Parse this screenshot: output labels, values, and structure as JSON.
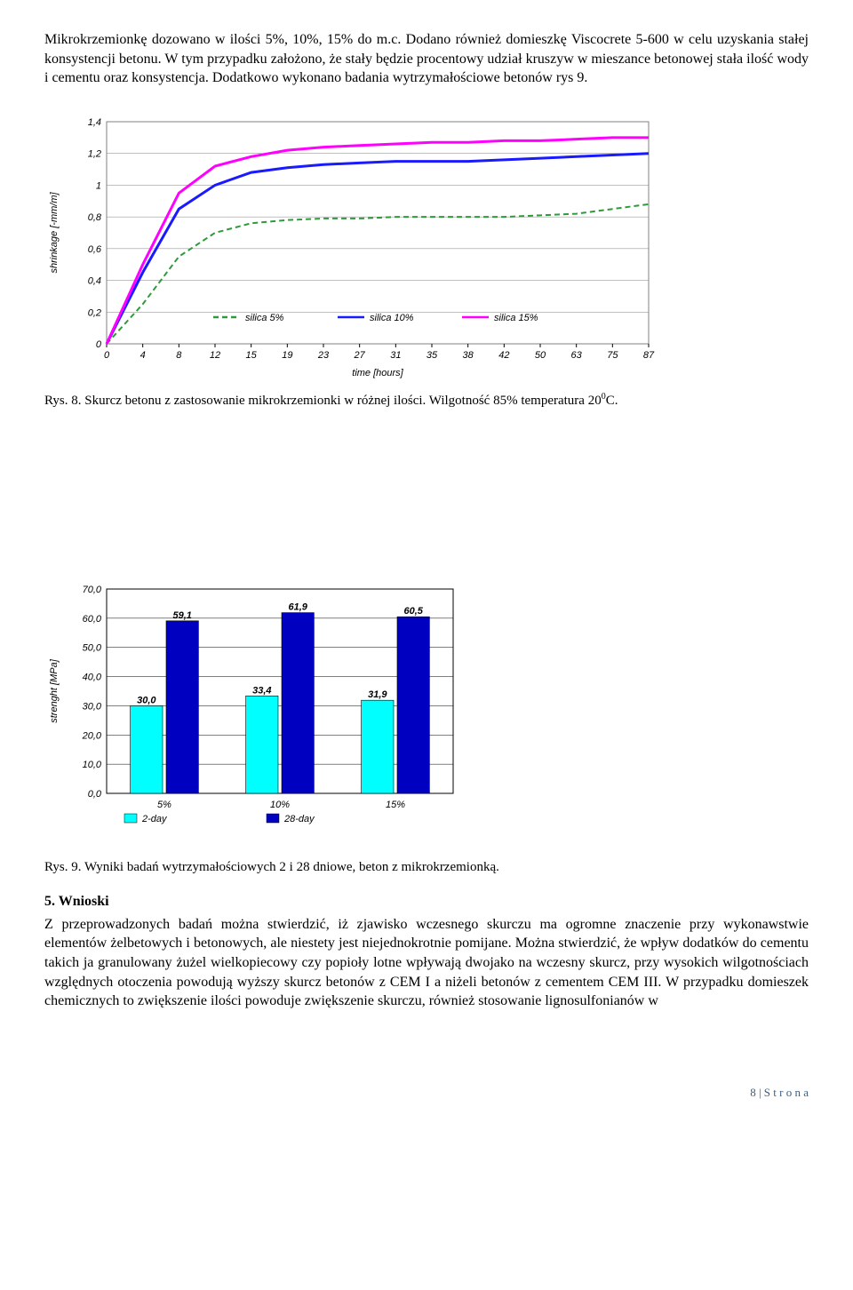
{
  "para1": "Mikrokrzemionkę dozowano w ilości 5%, 10%, 15% do m.c. Dodano również domieszkę Viscocrete 5-600 w celu uzyskania stałej konsystencji betonu. W tym przypadku założono, że stały będzie procentowy udział kruszyw w mieszance betonowej stała ilość wody i cementu oraz konsystencja. Dodatkowo wykonano badania wytrzymałościowe betonów rys 9.",
  "line_chart": {
    "type": "line",
    "x_ticks": [
      "0",
      "4",
      "8",
      "12",
      "15",
      "19",
      "23",
      "27",
      "31",
      "35",
      "38",
      "42",
      "50",
      "63",
      "75",
      "87"
    ],
    "y_ticks": [
      "0",
      "0,2",
      "0,4",
      "0,6",
      "0,8",
      "1",
      "1,2",
      "1,4"
    ],
    "ylim": [
      0,
      1.4
    ],
    "xlabel": "time [hours]",
    "ylabel": "shrinkage [-mm/m]",
    "series": [
      {
        "name": "silica 5%",
        "color": "#2e9a3a",
        "dash": "6,4",
        "y": [
          0,
          0.25,
          0.55,
          0.7,
          0.76,
          0.78,
          0.79,
          0.79,
          0.8,
          0.8,
          0.8,
          0.8,
          0.81,
          0.82,
          0.85,
          0.88
        ]
      },
      {
        "name": "silica 10%",
        "color": "#1a1aff",
        "dash": "none",
        "y": [
          0,
          0.45,
          0.85,
          1.0,
          1.08,
          1.11,
          1.13,
          1.14,
          1.15,
          1.15,
          1.15,
          1.16,
          1.17,
          1.18,
          1.19,
          1.2
        ]
      },
      {
        "name": "silica 15%",
        "color": "#ff00ff",
        "dash": "none",
        "y": [
          0,
          0.5,
          0.95,
          1.12,
          1.18,
          1.22,
          1.24,
          1.25,
          1.26,
          1.27,
          1.27,
          1.28,
          1.28,
          1.29,
          1.3,
          1.3
        ]
      }
    ],
    "plot_bg": "#ffffff",
    "grid_color": "#808080",
    "axis_color": "#000000",
    "font_size": 11,
    "line_width_5": 2,
    "line_width_10_15": 3
  },
  "caption1_prefix": "Rys. 8. Skurcz betonu z zastosowanie mikrokrzemionki w różnej ilości. Wilgotność 85% temperatura 20",
  "caption1_suffix": "C.",
  "bar_chart": {
    "type": "bar",
    "categories": [
      "5%",
      "10%",
      "15%"
    ],
    "series": [
      {
        "name": "2-day",
        "color": "#00ffff",
        "values": [
          30.0,
          33.4,
          31.9
        ],
        "labels": [
          "30,0",
          "33,4",
          "31,9"
        ]
      },
      {
        "name": "28-day",
        "color": "#0000c0",
        "values": [
          59.1,
          61.9,
          60.5
        ],
        "labels": [
          "59,1",
          "61,9",
          "60,5"
        ]
      }
    ],
    "y_ticks": [
      "0,0",
      "10,0",
      "20,0",
      "30,0",
      "40,0",
      "50,0",
      "60,0",
      "70,0"
    ],
    "ylim": [
      0,
      70
    ],
    "ylabel": "strenght [MPa]",
    "legend_swatch_2day": "#00ffff",
    "legend_swatch_28day": "#0000c0",
    "plot_bg": "#ffffff",
    "grid_color": "#000000",
    "axis_color": "#000000",
    "font_size": 11,
    "bar_value_fontsize": 11,
    "bar_value_color": "#000000"
  },
  "caption2": "Rys. 9. Wyniki badań wytrzymałościowych 2 i 28 dniowe, beton z mikrokrzemionką.",
  "section5_title": "5. Wnioski",
  "section5_body": "Z przeprowadzonych badań można stwierdzić, iż zjawisko wczesnego skurczu ma ogromne znaczenie przy wykonawstwie elementów żelbetowych i betonowych, ale niestety jest niejednokrotnie pomijane. Można stwierdzić, że wpływ dodatków do cementu takich ja granulowany żużel wielkopiecowy czy popioły lotne wpływają dwojako na wczesny skurcz, przy wysokich wilgotnościach względnych otoczenia powodują wyższy skurcz betonów z CEM I a niżeli betonów z cementem CEM III. W przypadku domieszek chemicznych to zwiększenie ilości powoduje zwiększenie skurczu, również stosowanie lignosulfonianów w",
  "footer": "8 | S t r o n a"
}
